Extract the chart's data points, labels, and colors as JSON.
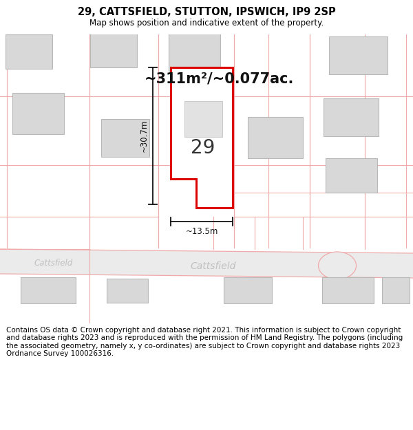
{
  "title_line1": "29, CATTSFIELD, STUTTON, IPSWICH, IP9 2SP",
  "title_line2": "Map shows position and indicative extent of the property.",
  "area_label": "~311m²/~0.077ac.",
  "property_number": "29",
  "dim_height": "~30.7m",
  "dim_width": "~13.5m",
  "road_label_left": "Cattsfield",
  "road_label_center": "Cattsfield",
  "footer_text": "Contains OS data © Crown copyright and database right 2021. This information is subject to Crown copyright and database rights 2023 and is reproduced with the permission of HM Land Registry. The polygons (including the associated geometry, namely x, y co-ordinates) are subject to Crown copyright and database rights 2023 Ordnance Survey 100026316.",
  "map_bg": "#f5f5f5",
  "building_fill": "#d8d8d8",
  "building_edge": "#b8b8b8",
  "property_fill": "#ffffff",
  "property_edge": "#dd0000",
  "road_line_color": "#f0aaaa",
  "road_fill": "#eeeeee",
  "dim_color": "#222222"
}
